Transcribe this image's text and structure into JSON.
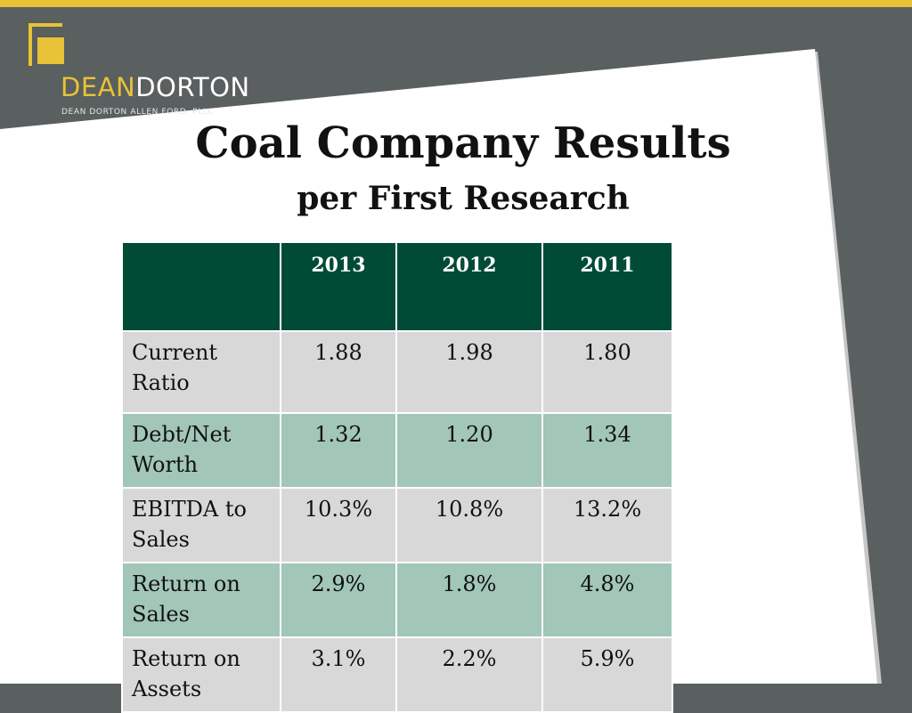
{
  "logo": {
    "word_first": "DEAN",
    "word_second": "DORTON",
    "subtitle": "DEAN DORTON ALLEN FORD, PLLC"
  },
  "title": "Coal Company Results",
  "subtitle": "per First Research",
  "table": {
    "headers": [
      "",
      "2013",
      "2012",
      "2011"
    ],
    "rows": [
      {
        "label": "Current Ratio",
        "values": [
          "1.88",
          "1.98",
          "1.80"
        ]
      },
      {
        "label": "Debt/Net Worth",
        "values": [
          "1.32",
          "1.20",
          "1.34"
        ]
      },
      {
        "label": "EBITDA to Sales",
        "values": [
          "10.3%",
          "10.8%",
          "13.2%"
        ]
      },
      {
        "label": "Return on Sales",
        "values": [
          "2.9%",
          "1.8%",
          "4.8%"
        ]
      },
      {
        "label": "Return on Assets",
        "values": [
          "3.1%",
          "2.2%",
          "5.9%"
        ]
      }
    ]
  },
  "colors": {
    "header_bg": "#004b35",
    "row_gray": "#d8d8d8",
    "row_green": "#a2c6b8",
    "accent_gold": "#e8c237",
    "frame_gray": "#5a5f5f"
  }
}
